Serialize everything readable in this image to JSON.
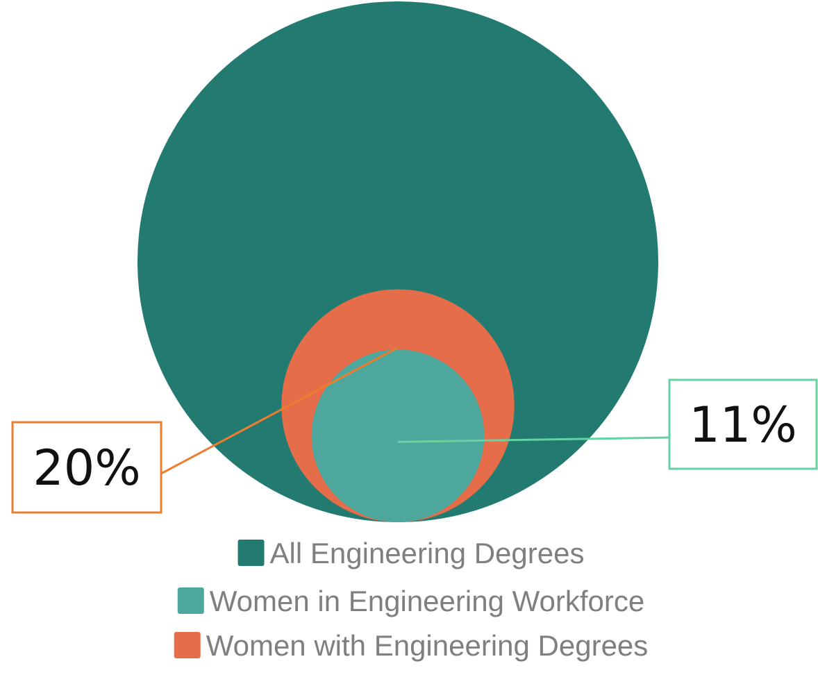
{
  "chart_data": {
    "type": "bubble",
    "title": "",
    "series": [
      {
        "name": "All Engineering Degrees",
        "value": 100,
        "color": "#227a71"
      },
      {
        "name": "Women with Engineering Degrees",
        "value": 20,
        "color": "#e66d4a"
      },
      {
        "name": "Women in Engineering Workforce",
        "value": 11,
        "color": "#4da79d"
      }
    ],
    "callouts": [
      {
        "label": "20%",
        "series": "Women with Engineering Degrees",
        "border_color": "#ee7d2d"
      },
      {
        "label": "11%",
        "series": "Women in Engineering Workforce",
        "border_color": "#66d2a0"
      }
    ],
    "legend": {
      "placement": "bottom",
      "entries": [
        {
          "label": "All Engineering Degrees",
          "color": "#227a71"
        },
        {
          "label": "Women in Engineering Workforce",
          "color": "#4da79d"
        },
        {
          "label": "Women with Engineering Degrees",
          "color": "#e66d4a"
        }
      ]
    }
  }
}
